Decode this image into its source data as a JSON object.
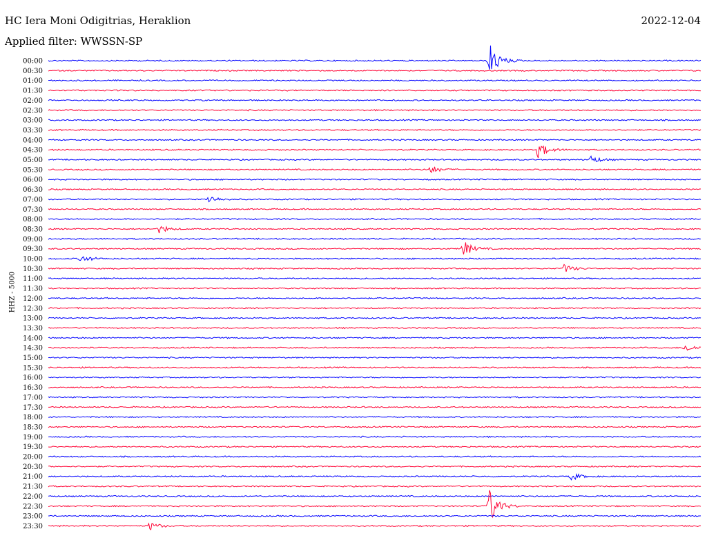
{
  "header": {
    "station": "HC Iera Moni Odigitrias, Heraklion",
    "date": "2022-12-04",
    "filter": "Applied filter: WWSSN-SP"
  },
  "chart_data": {
    "type": "line",
    "title": "HC Iera Moni Odigitrias, Heraklion",
    "ylabel": "HHZ - 5000",
    "row_labels": [
      "00:00",
      "00:30",
      "01:00",
      "01:30",
      "02:00",
      "02:30",
      "03:00",
      "03:30",
      "04:00",
      "04:30",
      "05:00",
      "05:30",
      "06:00",
      "06:30",
      "07:00",
      "07:30",
      "08:00",
      "08:30",
      "09:00",
      "09:30",
      "10:00",
      "10:30",
      "11:00",
      "11:30",
      "12:00",
      "12:30",
      "13:00",
      "13:30",
      "14:00",
      "14:30",
      "15:00",
      "15:30",
      "16:00",
      "16:30",
      "17:00",
      "17:30",
      "18:00",
      "18:30",
      "19:00",
      "19:30",
      "20:00",
      "20:30",
      "21:00",
      "21:30",
      "22:00",
      "22:30",
      "23:00",
      "23:30"
    ],
    "series_colors": [
      "#0000ff",
      "#ff0033"
    ],
    "notable_events": [
      {
        "row": "00:00",
        "x_fraction": 0.675,
        "amplitude": "large"
      },
      {
        "row": "04:30",
        "x_fraction": 0.75,
        "amplitude": "medium"
      },
      {
        "row": "05:00",
        "x_fraction": 0.83,
        "amplitude": "small"
      },
      {
        "row": "05:30",
        "x_fraction": 0.585,
        "amplitude": "small"
      },
      {
        "row": "07:00",
        "x_fraction": 0.245,
        "amplitude": "small"
      },
      {
        "row": "08:30",
        "x_fraction": 0.17,
        "amplitude": "small"
      },
      {
        "row": "09:30",
        "x_fraction": 0.635,
        "amplitude": "medium"
      },
      {
        "row": "10:00",
        "x_fraction": 0.05,
        "amplitude": "small"
      },
      {
        "row": "10:30",
        "x_fraction": 0.79,
        "amplitude": "small"
      },
      {
        "row": "14:30",
        "x_fraction": 0.975,
        "amplitude": "small"
      },
      {
        "row": "21:00",
        "x_fraction": 0.8,
        "amplitude": "small"
      },
      {
        "row": "22:30",
        "x_fraction": 0.675,
        "amplitude": "large"
      },
      {
        "row": "23:30",
        "x_fraction": 0.155,
        "amplitude": "small"
      }
    ]
  }
}
